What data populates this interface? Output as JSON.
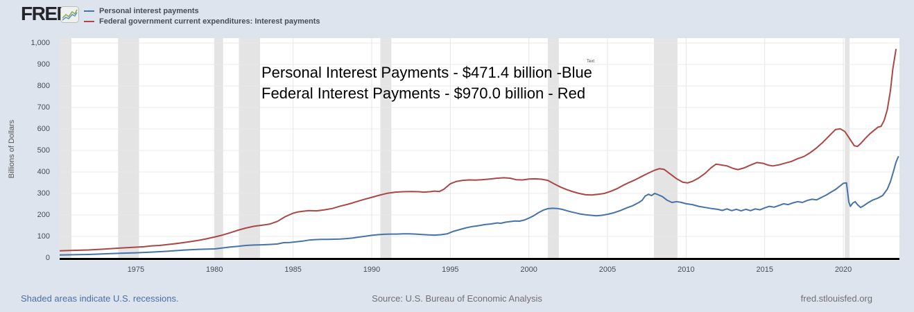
{
  "header": {
    "logo_text": "FRED",
    "registered_mark": "®",
    "legend": [
      {
        "label": "Personal interest payments",
        "color": "#4572a7"
      },
      {
        "label": "Federal government current expenditures: Interest payments",
        "color": "#aa4643"
      }
    ]
  },
  "annotation": {
    "line1": "Personal Interest Payments - $471.4 billion -Blue",
    "line2": "Federal Interest Payments - $970.0 billion - Red",
    "mini_label": "Text"
  },
  "footer": {
    "recession_note": "Shaded areas indicate U.S. recessions.",
    "source": "Source: U.S. Bureau of Economic Analysis",
    "site": "fred.stlouisfed.org"
  },
  "chart_data": {
    "type": "line",
    "title": "",
    "xlabel": "",
    "ylabel": "Billions of Dollars",
    "grid": true,
    "legend_position": "top-left",
    "xlim": [
      1970.15,
      2023.57
    ],
    "ylim": [
      0,
      1000
    ],
    "x_ticks": [
      1975,
      1980,
      1985,
      1990,
      1995,
      2000,
      2005,
      2010,
      2015,
      2020
    ],
    "y_ticks": [
      {
        "value": 0,
        "label": "0"
      },
      {
        "value": 100,
        "label": "100"
      },
      {
        "value": 200,
        "label": "200"
      },
      {
        "value": 300,
        "label": "300"
      },
      {
        "value": 400,
        "label": "400"
      },
      {
        "value": 500,
        "label": "500"
      },
      {
        "value": 600,
        "label": "600"
      },
      {
        "value": 700,
        "label": "700"
      },
      {
        "value": 800,
        "label": "800"
      },
      {
        "value": 900,
        "label": "900"
      },
      {
        "value": 1000,
        "label": "1,000"
      }
    ],
    "recession_band_color": "#e4e4e4",
    "recessions": [
      [
        1969.9,
        1970.9
      ],
      [
        1973.87,
        1975.2
      ],
      [
        1980.0,
        1980.55
      ],
      [
        1981.55,
        1982.9
      ],
      [
        1990.55,
        1991.25
      ],
      [
        2001.2,
        2001.9
      ],
      [
        2007.95,
        2009.45
      ],
      [
        2020.1,
        2020.4
      ]
    ],
    "series": [
      {
        "name": "Personal interest payments",
        "color": "#4572a7",
        "end_value_billion": 471.4,
        "points": [
          [
            1970.15,
            14
          ],
          [
            1971,
            15
          ],
          [
            1972,
            16
          ],
          [
            1973,
            19
          ],
          [
            1974,
            22
          ],
          [
            1975,
            24
          ],
          [
            1976,
            27
          ],
          [
            1977,
            31
          ],
          [
            1978,
            36
          ],
          [
            1979,
            40
          ],
          [
            1980,
            42
          ],
          [
            1980.6,
            47
          ],
          [
            1981,
            51
          ],
          [
            1981.5,
            54
          ],
          [
            1982,
            58
          ],
          [
            1982.5,
            60
          ],
          [
            1983,
            61
          ],
          [
            1983.6,
            63
          ],
          [
            1984,
            65
          ],
          [
            1984.4,
            71
          ],
          [
            1984.8,
            72
          ],
          [
            1985.2,
            75
          ],
          [
            1985.6,
            78
          ],
          [
            1986,
            83
          ],
          [
            1986.4,
            85
          ],
          [
            1986.8,
            86
          ],
          [
            1987.2,
            86
          ],
          [
            1987.6,
            87
          ],
          [
            1988,
            88
          ],
          [
            1988.4,
            90
          ],
          [
            1988.8,
            93
          ],
          [
            1989.2,
            97
          ],
          [
            1989.6,
            101
          ],
          [
            1990,
            105
          ],
          [
            1990.4,
            108
          ],
          [
            1990.8,
            110
          ],
          [
            1991.2,
            111
          ],
          [
            1991.6,
            111
          ],
          [
            1992,
            112
          ],
          [
            1992.4,
            112
          ],
          [
            1992.8,
            111
          ],
          [
            1993.2,
            109
          ],
          [
            1993.6,
            107
          ],
          [
            1994,
            106
          ],
          [
            1994.4,
            108
          ],
          [
            1994.8,
            112
          ],
          [
            1995.2,
            124
          ],
          [
            1995.6,
            132
          ],
          [
            1996,
            140
          ],
          [
            1996.4,
            146
          ],
          [
            1996.8,
            150
          ],
          [
            1997.2,
            155
          ],
          [
            1997.6,
            158
          ],
          [
            1998,
            163
          ],
          [
            1998.2,
            161
          ],
          [
            1998.5,
            166
          ],
          [
            1998.8,
            169
          ],
          [
            1999.1,
            172
          ],
          [
            1999.4,
            171
          ],
          [
            1999.7,
            176
          ],
          [
            2000,
            185
          ],
          [
            2000.3,
            196
          ],
          [
            2000.6,
            210
          ],
          [
            2000.9,
            222
          ],
          [
            2001.2,
            229
          ],
          [
            2001.5,
            231
          ],
          [
            2001.8,
            230
          ],
          [
            2002.1,
            226
          ],
          [
            2002.4,
            220
          ],
          [
            2002.7,
            214
          ],
          [
            2003,
            209
          ],
          [
            2003.3,
            204
          ],
          [
            2003.6,
            201
          ],
          [
            2004,
            198
          ],
          [
            2004.3,
            196
          ],
          [
            2004.6,
            198
          ],
          [
            2005,
            203
          ],
          [
            2005.4,
            210
          ],
          [
            2005.8,
            220
          ],
          [
            2006.2,
            232
          ],
          [
            2006.6,
            243
          ],
          [
            2007,
            258
          ],
          [
            2007.2,
            268
          ],
          [
            2007.4,
            288
          ],
          [
            2007.6,
            296
          ],
          [
            2007.8,
            290
          ],
          [
            2008,
            300
          ],
          [
            2008.2,
            295
          ],
          [
            2008.5,
            285
          ],
          [
            2008.8,
            268
          ],
          [
            2009.1,
            258
          ],
          [
            2009.4,
            262
          ],
          [
            2009.7,
            258
          ],
          [
            2010,
            252
          ],
          [
            2010.4,
            248
          ],
          [
            2010.8,
            240
          ],
          [
            2011.2,
            235
          ],
          [
            2011.6,
            230
          ],
          [
            2012,
            226
          ],
          [
            2012.3,
            221
          ],
          [
            2012.6,
            228
          ],
          [
            2012.9,
            220
          ],
          [
            2013.2,
            226
          ],
          [
            2013.5,
            219
          ],
          [
            2013.8,
            226
          ],
          [
            2014.1,
            220
          ],
          [
            2014.4,
            228
          ],
          [
            2014.7,
            224
          ],
          [
            2015,
            233
          ],
          [
            2015.3,
            240
          ],
          [
            2015.6,
            236
          ],
          [
            2015.9,
            244
          ],
          [
            2016.2,
            252
          ],
          [
            2016.5,
            248
          ],
          [
            2016.8,
            256
          ],
          [
            2017.1,
            262
          ],
          [
            2017.4,
            258
          ],
          [
            2017.7,
            267
          ],
          [
            2018,
            273
          ],
          [
            2018.3,
            270
          ],
          [
            2018.6,
            281
          ],
          [
            2018.9,
            292
          ],
          [
            2019.2,
            305
          ],
          [
            2019.5,
            318
          ],
          [
            2019.8,
            335
          ],
          [
            2020.0,
            347
          ],
          [
            2020.2,
            349
          ],
          [
            2020.35,
            260
          ],
          [
            2020.45,
            240
          ],
          [
            2020.6,
            255
          ],
          [
            2020.75,
            262
          ],
          [
            2020.9,
            248
          ],
          [
            2021.1,
            235
          ],
          [
            2021.3,
            243
          ],
          [
            2021.6,
            258
          ],
          [
            2021.9,
            270
          ],
          [
            2022.2,
            278
          ],
          [
            2022.5,
            290
          ],
          [
            2022.8,
            320
          ],
          [
            2023.0,
            355
          ],
          [
            2023.2,
            405
          ],
          [
            2023.35,
            445
          ],
          [
            2023.5,
            471
          ]
        ]
      },
      {
        "name": "Federal government current expenditures: Interest payments",
        "color": "#aa4643",
        "end_value_billion": 970.0,
        "points": [
          [
            1970.15,
            33
          ],
          [
            1971,
            35
          ],
          [
            1972,
            37
          ],
          [
            1973,
            41
          ],
          [
            1974,
            46
          ],
          [
            1975,
            50
          ],
          [
            1975.5,
            52
          ],
          [
            1976,
            56
          ],
          [
            1976.5,
            58
          ],
          [
            1977,
            62
          ],
          [
            1977.5,
            66
          ],
          [
            1978,
            71
          ],
          [
            1978.5,
            76
          ],
          [
            1979,
            82
          ],
          [
            1979.5,
            89
          ],
          [
            1980,
            97
          ],
          [
            1980.5,
            106
          ],
          [
            1981,
            117
          ],
          [
            1981.5,
            129
          ],
          [
            1982,
            139
          ],
          [
            1982.5,
            147
          ],
          [
            1983,
            152
          ],
          [
            1983.5,
            157
          ],
          [
            1984,
            170
          ],
          [
            1984.5,
            192
          ],
          [
            1985,
            208
          ],
          [
            1985.3,
            214
          ],
          [
            1985.6,
            217
          ],
          [
            1986,
            220
          ],
          [
            1986.5,
            219
          ],
          [
            1987,
            224
          ],
          [
            1987.5,
            230
          ],
          [
            1988,
            241
          ],
          [
            1988.5,
            250
          ],
          [
            1989,
            261
          ],
          [
            1989.5,
            272
          ],
          [
            1990,
            282
          ],
          [
            1990.5,
            292
          ],
          [
            1991,
            301
          ],
          [
            1991.5,
            306
          ],
          [
            1992,
            308
          ],
          [
            1992.5,
            309
          ],
          [
            1993,
            308
          ],
          [
            1993.3,
            306
          ],
          [
            1993.7,
            308
          ],
          [
            1994,
            311
          ],
          [
            1994.3,
            309
          ],
          [
            1994.6,
            320
          ],
          [
            1995,
            345
          ],
          [
            1995.4,
            356
          ],
          [
            1995.8,
            361
          ],
          [
            1996.2,
            363
          ],
          [
            1996.6,
            362
          ],
          [
            1997,
            364
          ],
          [
            1997.5,
            367
          ],
          [
            1998,
            371
          ],
          [
            1998.4,
            373
          ],
          [
            1998.8,
            371
          ],
          [
            1999.2,
            364
          ],
          [
            1999.6,
            363
          ],
          [
            2000,
            367
          ],
          [
            2000.4,
            368
          ],
          [
            2000.8,
            366
          ],
          [
            2001.2,
            361
          ],
          [
            2001.6,
            345
          ],
          [
            2002,
            330
          ],
          [
            2002.4,
            318
          ],
          [
            2002.8,
            308
          ],
          [
            2003.2,
            300
          ],
          [
            2003.6,
            294
          ],
          [
            2004,
            293
          ],
          [
            2004.4,
            296
          ],
          [
            2004.8,
            300
          ],
          [
            2005.2,
            310
          ],
          [
            2005.6,
            322
          ],
          [
            2006,
            338
          ],
          [
            2006.4,
            352
          ],
          [
            2006.8,
            365
          ],
          [
            2007.2,
            380
          ],
          [
            2007.6,
            395
          ],
          [
            2008,
            408
          ],
          [
            2008.3,
            415
          ],
          [
            2008.6,
            412
          ],
          [
            2009,
            390
          ],
          [
            2009.4,
            368
          ],
          [
            2009.8,
            352
          ],
          [
            2010.1,
            349
          ],
          [
            2010.4,
            356
          ],
          [
            2010.8,
            372
          ],
          [
            2011.2,
            393
          ],
          [
            2011.6,
            420
          ],
          [
            2011.9,
            436
          ],
          [
            2012.2,
            433
          ],
          [
            2012.6,
            428
          ],
          [
            2013,
            416
          ],
          [
            2013.3,
            411
          ],
          [
            2013.7,
            419
          ],
          [
            2014.1,
            432
          ],
          [
            2014.5,
            444
          ],
          [
            2014.9,
            440
          ],
          [
            2015.2,
            432
          ],
          [
            2015.5,
            428
          ],
          [
            2015.9,
            433
          ],
          [
            2016.3,
            441
          ],
          [
            2016.7,
            449
          ],
          [
            2017.1,
            462
          ],
          [
            2017.5,
            472
          ],
          [
            2017.9,
            490
          ],
          [
            2018.3,
            512
          ],
          [
            2018.7,
            538
          ],
          [
            2019.1,
            568
          ],
          [
            2019.5,
            597
          ],
          [
            2019.8,
            601
          ],
          [
            2020.1,
            588
          ],
          [
            2020.4,
            555
          ],
          [
            2020.7,
            522
          ],
          [
            2020.9,
            519
          ],
          [
            2021.1,
            532
          ],
          [
            2021.4,
            556
          ],
          [
            2021.7,
            578
          ],
          [
            2022,
            596
          ],
          [
            2022.2,
            608
          ],
          [
            2022.4,
            612
          ],
          [
            2022.6,
            640
          ],
          [
            2022.8,
            690
          ],
          [
            2023,
            780
          ],
          [
            2023.15,
            880
          ],
          [
            2023.35,
            970
          ]
        ]
      }
    ]
  }
}
